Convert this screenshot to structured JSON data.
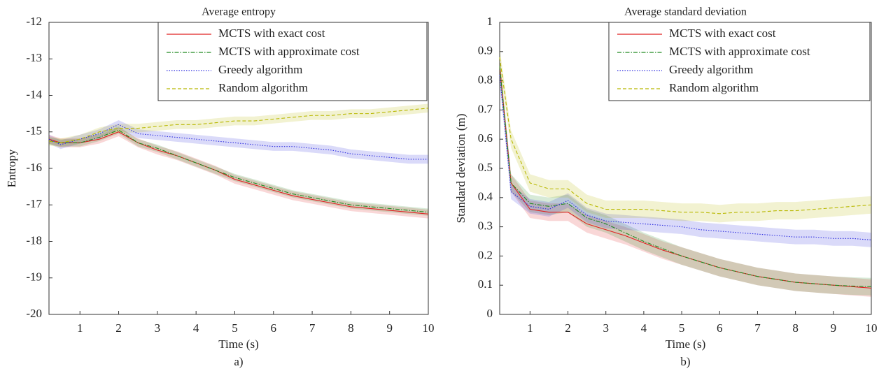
{
  "chart_data": [
    {
      "type": "line",
      "title": "Average entropy",
      "x_label": "Time (s)",
      "y_label": "Entropy",
      "caption": "a)",
      "x": [
        0.2,
        0.5,
        1,
        1.5,
        2,
        2.5,
        3,
        3.5,
        4,
        4.5,
        5,
        5.5,
        6,
        6.5,
        7,
        7.5,
        8,
        8.5,
        9,
        9.5,
        10
      ],
      "xlim": [
        0.2,
        10
      ],
      "xticks": [
        1,
        2,
        3,
        4,
        5,
        6,
        7,
        8,
        9,
        10
      ],
      "ylim": [
        -20,
        -12
      ],
      "yticks": [
        -20,
        -19,
        -18,
        -17,
        -16,
        -15,
        -14,
        -13,
        -12
      ],
      "legend": "top right",
      "series": [
        {
          "name": "MCTS with exact cost",
          "color": "#e02020",
          "style": "solid",
          "band": 0.12,
          "values": [
            -15.2,
            -15.3,
            -15.3,
            -15.2,
            -15.0,
            -15.3,
            -15.5,
            -15.65,
            -15.85,
            -16.05,
            -16.3,
            -16.45,
            -16.6,
            -16.75,
            -16.85,
            -16.95,
            -17.05,
            -17.1,
            -17.15,
            -17.2,
            -17.25
          ]
        },
        {
          "name": "MCTS with approximate cost",
          "color": "#208a20",
          "style": "dashdot",
          "band": 0.1,
          "values": [
            -15.25,
            -15.3,
            -15.3,
            -15.15,
            -14.95,
            -15.3,
            -15.45,
            -15.65,
            -15.85,
            -16.05,
            -16.25,
            -16.4,
            -16.55,
            -16.7,
            -16.8,
            -16.9,
            -17.0,
            -17.05,
            -17.1,
            -17.15,
            -17.2
          ]
        },
        {
          "name": "Greedy algorithm",
          "color": "#3030e0",
          "style": "dotted",
          "band": 0.12,
          "values": [
            -15.2,
            -15.35,
            -15.2,
            -15.05,
            -14.8,
            -15.05,
            -15.1,
            -15.15,
            -15.2,
            -15.25,
            -15.3,
            -15.35,
            -15.4,
            -15.4,
            -15.45,
            -15.5,
            -15.6,
            -15.65,
            -15.7,
            -15.75,
            -15.75
          ]
        },
        {
          "name": "Random algorithm",
          "color": "#b8b800",
          "style": "dashed",
          "band": 0.12,
          "values": [
            -15.25,
            -15.3,
            -15.2,
            -15.0,
            -14.9,
            -14.9,
            -14.85,
            -14.8,
            -14.8,
            -14.75,
            -14.7,
            -14.7,
            -14.65,
            -14.6,
            -14.55,
            -14.55,
            -14.5,
            -14.5,
            -14.45,
            -14.4,
            -14.35
          ]
        }
      ]
    },
    {
      "type": "line",
      "title": "Average standard deviation",
      "x_label": "Time (s)",
      "y_label": "Standard deviation (m)",
      "caption": "b)",
      "x": [
        0.2,
        0.5,
        1,
        1.5,
        2,
        2.5,
        3,
        3.5,
        4,
        4.5,
        5,
        5.5,
        6,
        6.5,
        7,
        7.5,
        8,
        8.5,
        9,
        9.5,
        10
      ],
      "xlim": [
        0.2,
        10
      ],
      "xticks": [
        1,
        2,
        3,
        4,
        5,
        6,
        7,
        8,
        9,
        10
      ],
      "ylim": [
        0,
        1
      ],
      "yticks": [
        0,
        0.1,
        0.2,
        0.3,
        0.4,
        0.5,
        0.6,
        0.7,
        0.8,
        0.9,
        1
      ],
      "legend": "top right",
      "series": [
        {
          "name": "MCTS with exact cost",
          "color": "#e02020",
          "style": "solid",
          "band": 0.03,
          "values": [
            0.85,
            0.45,
            0.36,
            0.35,
            0.35,
            0.31,
            0.29,
            0.27,
            0.245,
            0.22,
            0.2,
            0.18,
            0.16,
            0.145,
            0.13,
            0.12,
            0.11,
            0.105,
            0.1,
            0.095,
            0.09
          ]
        },
        {
          "name": "MCTS with approximate cost",
          "color": "#208a20",
          "style": "dashdot",
          "band": 0.03,
          "values": [
            0.85,
            0.45,
            0.38,
            0.37,
            0.38,
            0.33,
            0.31,
            0.28,
            0.25,
            0.225,
            0.2,
            0.18,
            0.16,
            0.145,
            0.13,
            0.12,
            0.11,
            0.105,
            0.1,
            0.097,
            0.095
          ]
        },
        {
          "name": "Greedy algorithm",
          "color": "#3030e0",
          "style": "dotted",
          "band": 0.025,
          "values": [
            0.82,
            0.42,
            0.37,
            0.36,
            0.39,
            0.34,
            0.32,
            0.315,
            0.31,
            0.305,
            0.3,
            0.29,
            0.285,
            0.28,
            0.275,
            0.27,
            0.265,
            0.265,
            0.26,
            0.26,
            0.255
          ]
        },
        {
          "name": "Random algorithm",
          "color": "#b8b800",
          "style": "dashed",
          "band": 0.03,
          "values": [
            0.88,
            0.6,
            0.45,
            0.43,
            0.43,
            0.38,
            0.36,
            0.36,
            0.36,
            0.355,
            0.35,
            0.35,
            0.345,
            0.35,
            0.35,
            0.355,
            0.355,
            0.36,
            0.365,
            0.37,
            0.375
          ]
        }
      ]
    }
  ]
}
